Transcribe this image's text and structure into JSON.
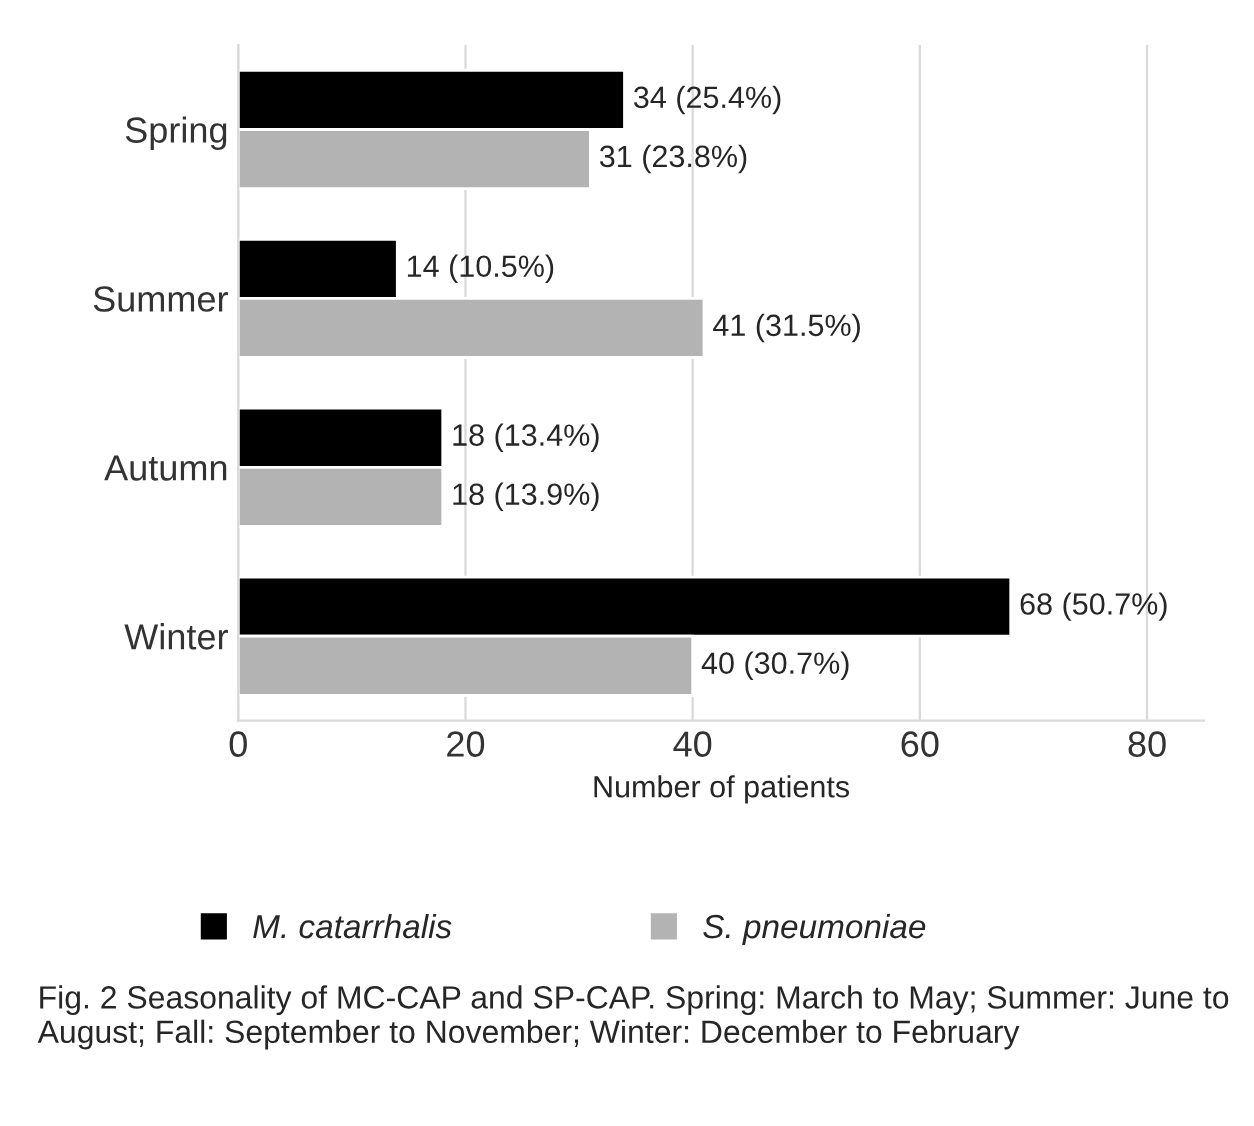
{
  "chart_data": {
    "type": "bar",
    "orientation": "horizontal",
    "categories": [
      "Spring",
      "Summer",
      "Autumn",
      "Winter"
    ],
    "series": [
      {
        "name": "M. catarrhalis",
        "color": "#000000",
        "values": [
          34,
          14,
          18,
          68
        ],
        "value_labels": [
          "34 (25.4%)",
          "14 (10.5%)",
          "18 (13.4%)",
          "68 (50.7%)"
        ]
      },
      {
        "name": "S. pneumoniae",
        "color": "#b3b3b3",
        "values": [
          31,
          41,
          18,
          40
        ],
        "value_labels": [
          "31 (23.8%)",
          "41 (31.5%)",
          "18 (13.9%)",
          "40 (30.7%)"
        ]
      }
    ],
    "xlabel": "Number of patients",
    "xlim": [
      0,
      85
    ],
    "xticks": [
      0,
      20,
      40,
      60,
      80
    ],
    "grid": "x",
    "legend": "bottom",
    "annotations": [
      "Fig. 2 Seasonality of MC-CAP and SP-CAP. Spring: March to May; Summer: June to August; Fall: September to November; Winter: December to February"
    ]
  }
}
